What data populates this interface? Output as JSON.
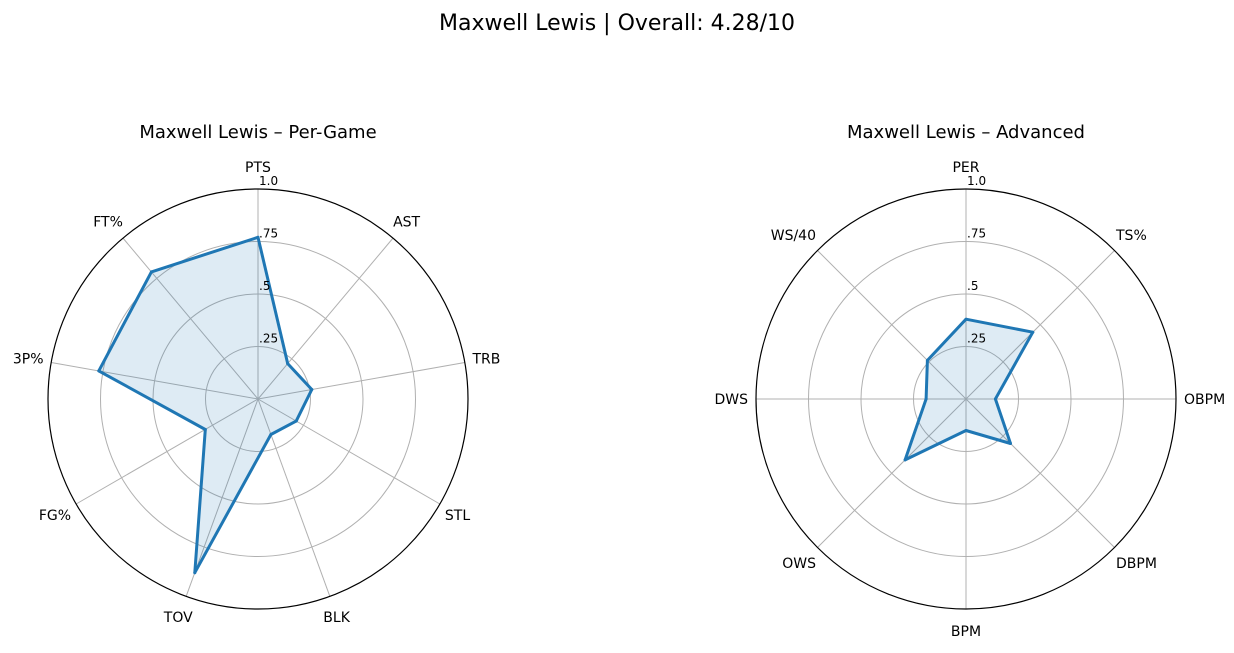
{
  "figure": {
    "title": "Maxwell Lewis | Overall: 4.28/10"
  },
  "chart_data": [
    {
      "type": "radar",
      "title": "Maxwell Lewis – Per-Game",
      "categories": [
        "PTS",
        "AST",
        "TRB",
        "STL",
        "BLK",
        "TOV",
        "FG%",
        "3P%",
        "FT%"
      ],
      "values": [
        0.77,
        0.22,
        0.26,
        0.21,
        0.18,
        0.88,
        0.29,
        0.77,
        0.79
      ],
      "rlim": [
        0,
        1.0
      ],
      "r_ticks": [
        0.25,
        0.5,
        0.75,
        1.0
      ],
      "r_tick_labels": [
        ".25",
        ".5",
        ".75",
        "1.0"
      ],
      "grid": true,
      "color": "#1f77b4"
    },
    {
      "type": "radar",
      "title": "Maxwell Lewis – Advanced",
      "categories": [
        "PER",
        "TS%",
        "OBPM",
        "DBPM",
        "BPM",
        "OWS",
        "DWS",
        "WS/40"
      ],
      "values": [
        0.38,
        0.45,
        0.14,
        0.3,
        0.15,
        0.41,
        0.19,
        0.26
      ],
      "rlim": [
        0,
        1.0
      ],
      "r_ticks": [
        0.25,
        0.5,
        0.75,
        1.0
      ],
      "r_tick_labels": [
        ".25",
        ".5",
        ".75",
        "1.0"
      ],
      "grid": true,
      "color": "#1f77b4"
    }
  ]
}
